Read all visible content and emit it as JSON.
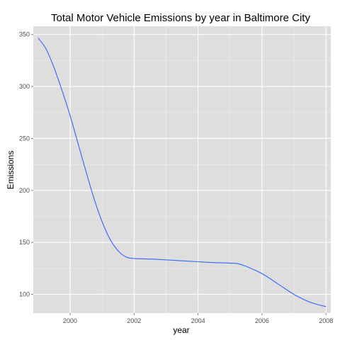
{
  "chart_data": {
    "type": "line",
    "title": "Total Motor Vehicle Emissions by year in Baltimore City",
    "xlabel": "year",
    "ylabel": "Emissions",
    "xlim": [
      1998.85,
      2008.15
    ],
    "ylim": [
      82,
      358
    ],
    "x_ticks": [
      2000,
      2002,
      2004,
      2006,
      2008
    ],
    "y_ticks": [
      100,
      150,
      200,
      250,
      300,
      350
    ],
    "grid": true,
    "legend": "none",
    "series": [
      {
        "color": "#3366FF",
        "x": [
          1999,
          1999.25,
          1999.5,
          1999.75,
          2000,
          2000.25,
          2000.5,
          2000.75,
          2001,
          2001.25,
          2001.5,
          2001.75,
          2002,
          2002.5,
          2003,
          2003.5,
          2004,
          2004.5,
          2005,
          2005.25,
          2005.5,
          2006,
          2006.5,
          2007,
          2007.5,
          2008
        ],
        "y": [
          346.8,
          336,
          318,
          296,
          272,
          245,
          218,
          192,
          170,
          153,
          142,
          136,
          134.5,
          134,
          133.2,
          132.3,
          131.4,
          130.6,
          130.1,
          129.5,
          127,
          120,
          110,
          100,
          92.5,
          88.2
        ]
      }
    ],
    "colors": {
      "panel": "#DEDEDE",
      "grid_major": "#FFFFFF",
      "grid_minor": "#EEEEEE",
      "line": "#3366FF"
    }
  }
}
